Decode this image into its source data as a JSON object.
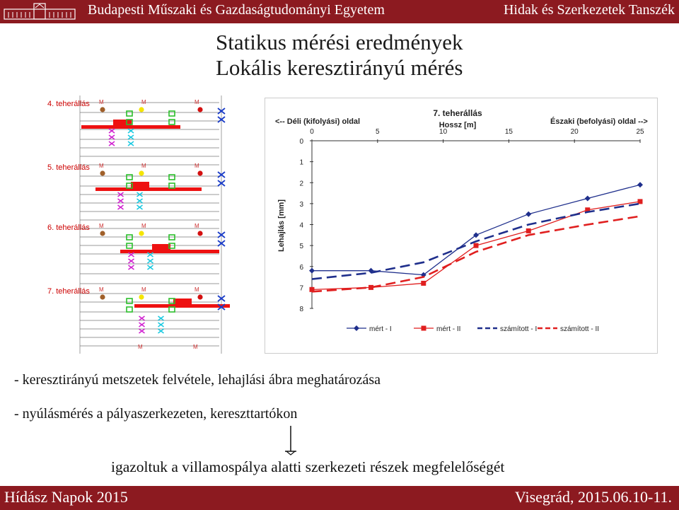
{
  "header": {
    "university": "Budapesti Műszaki és Gazdaságtudományi Egyetem",
    "department": "Hidak és Szerkezetek Tanszék"
  },
  "title": {
    "line1": "Statikus mérési eredmények",
    "line2": "Lokális keresztirányú mérés"
  },
  "diagram": {
    "labels": [
      "4. teherállás",
      "5. teherállás",
      "6. teherállás",
      "7. teherállás"
    ],
    "marker": "M",
    "colors": {
      "label": "#cc0000",
      "marker": "#cc3333",
      "load": "#ee1111"
    }
  },
  "chart_data": {
    "type": "line",
    "title": "7. teherállás",
    "xlabel": "Hossz [m]",
    "ylabel": "Lehajlás [mm]",
    "left_note": "<-- Déli (kifolyási) oldal",
    "right_note": "Északi (befolyási) oldal -->",
    "xlim": [
      0,
      25
    ],
    "ylim": [
      0,
      8
    ],
    "xticks": [
      0,
      5,
      10,
      15,
      20,
      25
    ],
    "yticks": [
      0,
      1,
      2,
      3,
      4,
      5,
      6,
      7,
      8
    ],
    "series": [
      {
        "name": "mért - I",
        "x": [
          0,
          4.5,
          8.5,
          12.5,
          16.5,
          21,
          25
        ],
        "y": [
          6.2,
          6.2,
          6.4,
          4.5,
          3.5,
          2.75,
          2.1
        ],
        "color": "#1f2f8c",
        "style": "solid",
        "marker": "diamond"
      },
      {
        "name": "mért - II",
        "x": [
          0,
          4.5,
          8.5,
          12.5,
          16.5,
          21,
          25
        ],
        "y": [
          7.1,
          7.0,
          6.8,
          5.0,
          4.3,
          3.3,
          2.9
        ],
        "color": "#e01f1f",
        "style": "solid",
        "marker": "square"
      },
      {
        "name": "számított - I",
        "x": [
          0,
          4.5,
          8.5,
          12.5,
          16.5,
          21,
          25
        ],
        "y": [
          6.6,
          6.3,
          5.8,
          4.8,
          4.0,
          3.4,
          3.0
        ],
        "color": "#1f2f8c",
        "style": "dashed",
        "marker": "none"
      },
      {
        "name": "számított - II",
        "x": [
          0,
          4.5,
          8.5,
          12.5,
          16.5,
          21,
          25
        ],
        "y": [
          7.2,
          7.0,
          6.5,
          5.3,
          4.5,
          4.0,
          3.6
        ],
        "color": "#e01f1f",
        "style": "dashed",
        "marker": "none"
      }
    ]
  },
  "bullets": [
    "-   keresztirányú metszetek felvétele, lehajlási ábra meghatározása",
    "-   nyúlásmérés a pályaszerkezeten, kereszttartókon"
  ],
  "result": "igazoltuk a villamospálya alatti szerkezeti részek megfelelőségét",
  "footer": {
    "event": "Hídász Napok 2015",
    "place_date": "Visegrád, 2015.06.10-11."
  }
}
